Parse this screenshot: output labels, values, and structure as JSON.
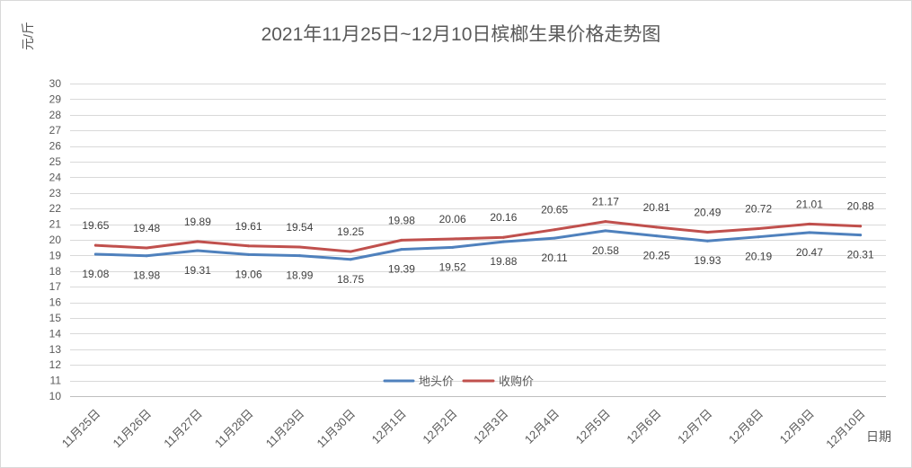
{
  "chart_data": {
    "type": "line",
    "title": "2021年11月25日~12月10日槟榔生果价格走势图",
    "xlabel": "日期",
    "ylabel": "元/斤",
    "ylim": [
      10,
      30
    ],
    "yticks": [
      10,
      11,
      12,
      13,
      14,
      15,
      16,
      17,
      18,
      19,
      20,
      21,
      22,
      23,
      24,
      25,
      26,
      27,
      28,
      29,
      30
    ],
    "grid": true,
    "legend": "bottom",
    "categories": [
      "11月25日",
      "11月26日",
      "11月27日",
      "11月28日",
      "11月29日",
      "11月30日",
      "12月1日",
      "12月2日",
      "12月3日",
      "12月4日",
      "12月5日",
      "12月6日",
      "12月7日",
      "12月8日",
      "12月9日",
      "12月10日"
    ],
    "series": [
      {
        "name": "地头价",
        "color": "#4F81BD",
        "data_labels": "below",
        "values": [
          19.08,
          18.98,
          19.31,
          19.06,
          18.99,
          18.75,
          19.39,
          19.52,
          19.88,
          20.11,
          20.58,
          20.25,
          19.93,
          20.19,
          20.47,
          20.31
        ]
      },
      {
        "name": "收购价",
        "color": "#C0504D",
        "data_labels": "above",
        "values": [
          19.65,
          19.48,
          19.89,
          19.61,
          19.54,
          19.25,
          19.98,
          20.06,
          20.16,
          20.65,
          21.17,
          20.81,
          20.49,
          20.72,
          21.01,
          20.88
        ]
      }
    ]
  }
}
